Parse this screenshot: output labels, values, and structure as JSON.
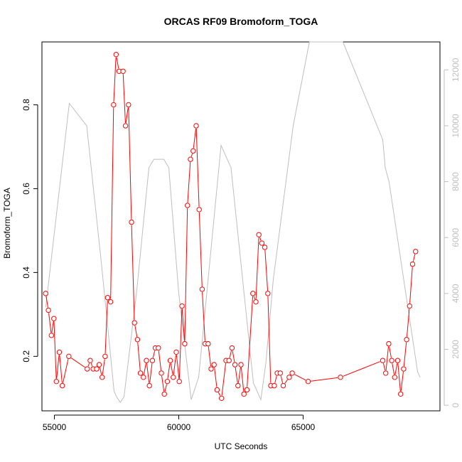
{
  "chart_data": {
    "type": "line",
    "title": "ORCAS RF09 Bromoform_TOGA",
    "xlabel": "UTC Seconds",
    "ylabel": "Bromoform_TOGA",
    "xlim": [
      54500,
      70500
    ],
    "ylim": [
      0.07,
      0.95
    ],
    "y2lim": [
      -200,
      13000
    ],
    "x_ticks": [
      55000,
      60000,
      65000
    ],
    "y_ticks": [
      0.2,
      0.4,
      0.6,
      0.8
    ],
    "y2_ticks": [
      0,
      2000,
      4000,
      6000,
      8000,
      10000,
      12000
    ],
    "grid": false,
    "series": [
      {
        "role": "primary",
        "color": "#ff0000",
        "x": [
          54650,
          54760,
          54880,
          54980,
          55080,
          55200,
          55320,
          55580,
          56320,
          56440,
          56560,
          56700,
          56800,
          56920,
          57040,
          57140,
          57260,
          57380,
          57480,
          57600,
          57760,
          57860,
          57980,
          58100,
          58220,
          58340,
          58460,
          58580,
          58700,
          58820,
          58940,
          59060,
          59180,
          59300,
          59420,
          59540,
          59660,
          59780,
          59900,
          60020,
          60130,
          60240,
          60350,
          60470,
          60580,
          60700,
          60820,
          60940,
          61060,
          61180,
          61300,
          61420,
          61540,
          61720,
          61900,
          62020,
          62140,
          62260,
          62380,
          62500,
          62620,
          62740,
          62980,
          63100,
          63220,
          63340,
          63460,
          63580,
          63700,
          63840,
          63960,
          64080,
          64200,
          64440,
          64560,
          65200,
          66500,
          68200,
          68320,
          68440,
          68560,
          68680,
          68800,
          68920,
          69040,
          69160,
          69280,
          69400,
          69520
        ],
        "values": [
          0.35,
          0.31,
          0.25,
          0.29,
          0.14,
          0.21,
          0.13,
          0.2,
          0.17,
          0.19,
          0.17,
          0.17,
          0.18,
          0.15,
          0.2,
          0.34,
          0.33,
          0.8,
          0.92,
          0.88,
          0.88,
          0.75,
          0.8,
          0.52,
          0.28,
          0.24,
          0.16,
          0.15,
          0.19,
          0.13,
          0.19,
          0.22,
          0.22,
          0.16,
          0.11,
          0.14,
          0.19,
          0.15,
          0.21,
          0.14,
          0.32,
          0.23,
          0.56,
          0.67,
          0.69,
          0.75,
          0.55,
          0.36,
          0.23,
          0.23,
          0.17,
          0.18,
          0.12,
          0.1,
          0.19,
          0.19,
          0.22,
          0.18,
          0.13,
          0.18,
          0.11,
          0.12,
          0.35,
          0.33,
          0.49,
          0.47,
          0.46,
          0.35,
          0.13,
          0.13,
          0.16,
          0.16,
          0.13,
          0.15,
          0.16,
          0.14,
          0.15,
          0.19,
          0.16,
          0.23,
          0.19,
          0.15,
          0.19,
          0.11,
          0.17,
          0.24,
          0.32,
          0.42,
          0.45
        ]
      },
      {
        "role": "secondary",
        "color": "#bebebe",
        "x": [
          54650,
          55600,
          56300,
          56900,
          57400,
          57500,
          57650,
          57800,
          58300,
          58800,
          59000,
          59400,
          59600,
          60000,
          60500,
          60800,
          61700,
          62100,
          63000,
          63300,
          63500,
          63800,
          64600,
          65250,
          66600,
          68200,
          68300,
          68450,
          69600,
          69700
        ],
        "values": [
          3500,
          10800,
          10000,
          5000,
          500,
          300,
          100,
          300,
          4000,
          8500,
          8800,
          8800,
          8500,
          4000,
          200,
          1000,
          9300,
          8500,
          800,
          200,
          1500,
          4500,
          10000,
          13000,
          13000,
          9500,
          8500,
          8000,
          1200,
          1000
        ]
      }
    ]
  }
}
